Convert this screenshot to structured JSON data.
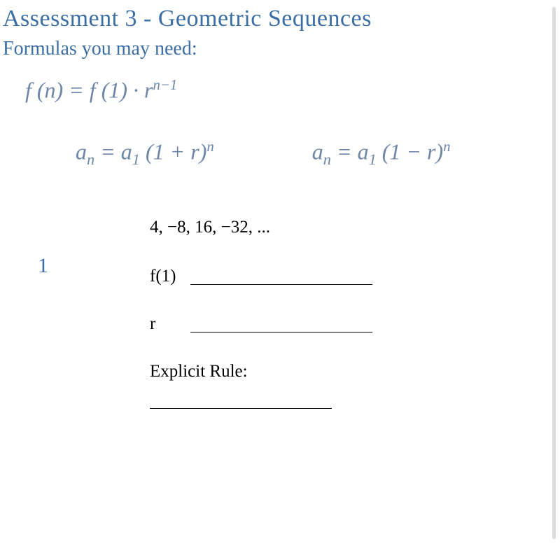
{
  "title": "Assessment 3 - Geometric Sequences",
  "subhead": "Formulas you may need:",
  "colors": {
    "heading": "#3b6ea5",
    "formula": "#6d86a8",
    "text": "#000000",
    "background": "#ffffff",
    "scrollbar": "#dcdcdc"
  },
  "formulas": {
    "f1_html": "<i>f</i> (<i>n</i>) = <i>f</i> (1) · <i>r</i><sup><i>n</i>−1</sup>",
    "f2_html": "<i>a</i><sub>n</sub> = <i>a</i><sub>1</sub> (1 + <i>r</i>)<sup><i>n</i></sup>",
    "f3_html": "<i>a</i><sub>n</sub> = <i>a</i><sub>1</sub> (1 − <i>r</i>)<sup><i>n</i></sup>",
    "font_size_pt": 24
  },
  "problem": {
    "number": "1",
    "sequence_text": "4,  −8,  16,  −32, ...",
    "sequence_values": [
      4,
      -8,
      16,
      -32
    ],
    "fields": {
      "f1_label": "f(1)",
      "r_label": "r",
      "explicit_label": "Explicit Rule:"
    }
  }
}
